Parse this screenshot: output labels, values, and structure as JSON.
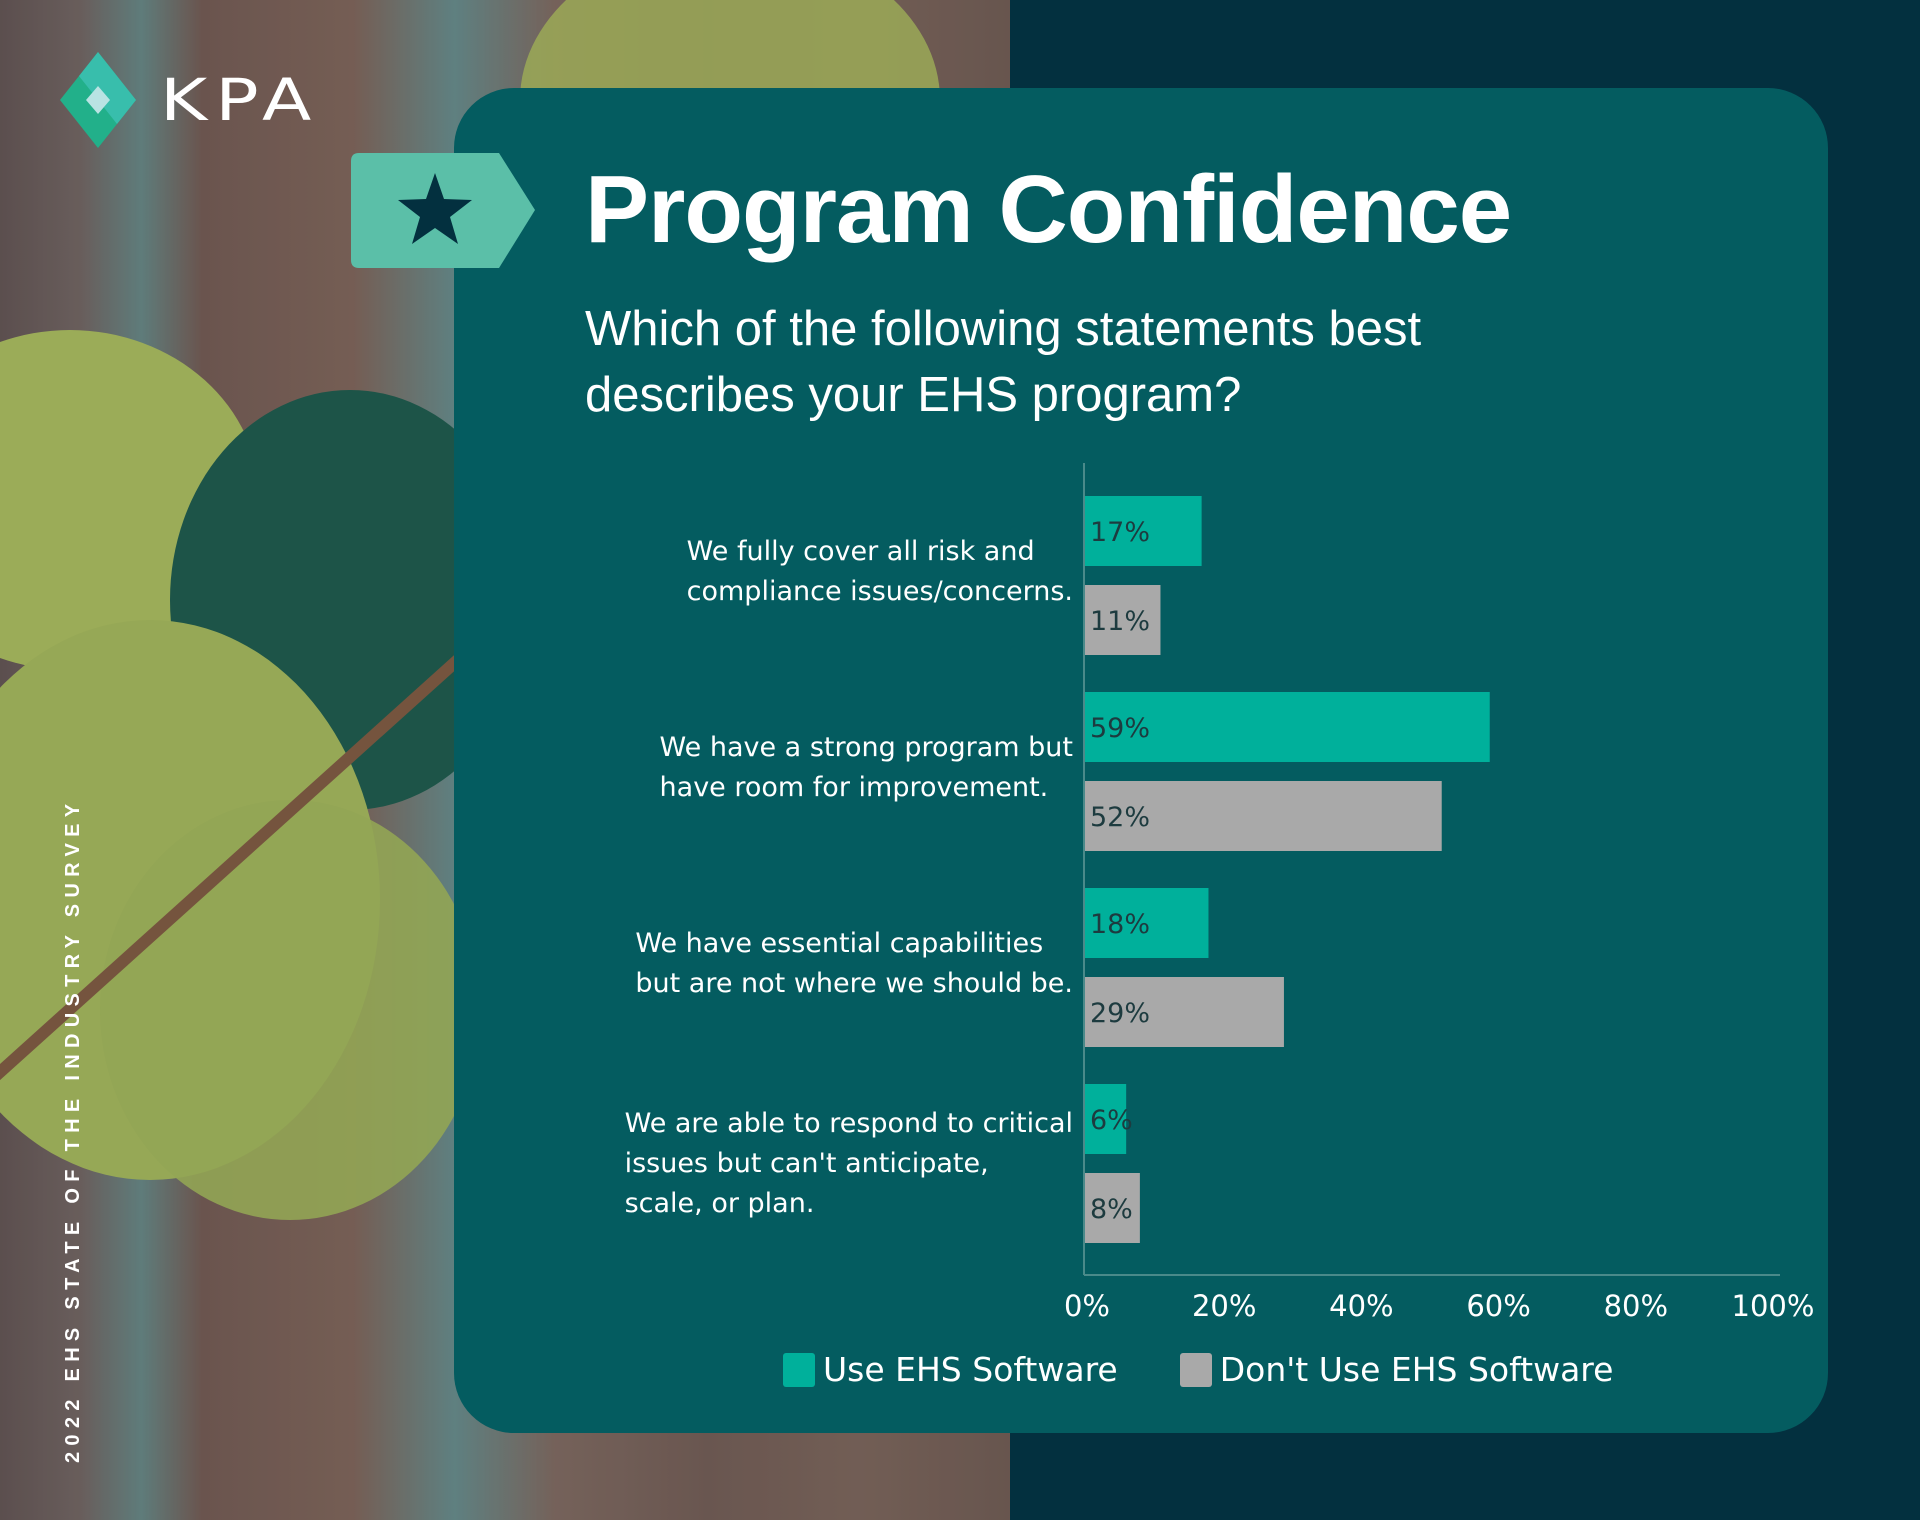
{
  "brand": {
    "logo_text": "KPA"
  },
  "side_caption": "2022 EHS STATE OF THE INDUSTRY SURVEY",
  "header": {
    "title": "Program Confidence",
    "subtitle": "Which of the following statements best describes your EHS program?"
  },
  "colors": {
    "use": "#00b09b",
    "dont_use": "#a9a9a9",
    "card": "#045c60",
    "tag": "#5bbfa8",
    "background": "#03303f"
  },
  "chart_data": {
    "type": "bar",
    "orientation": "horizontal",
    "categories": [
      "We fully cover all risk and compliance issues/concerns.",
      "We have a strong program but have room for improvement.",
      "We have essential capabilities but are not where we should be.",
      "We are able to respond to critical issues but can't anticipate, scale, or plan."
    ],
    "category_lines": [
      [
        "We fully cover all risk and",
        "compliance issues/concerns."
      ],
      [
        "We have a strong program but",
        "have room for improvement."
      ],
      [
        "We have essential capabilities",
        "but are not where we should be."
      ],
      [
        "We are able to respond to critical",
        "issues but can't anticipate,",
        "scale, or plan."
      ]
    ],
    "series": [
      {
        "name": "Use EHS Software",
        "values": [
          17,
          59,
          18,
          6
        ],
        "labels": [
          "17%",
          "59%",
          "18%",
          "6%"
        ]
      },
      {
        "name": "Don't Use EHS Software",
        "values": [
          11,
          52,
          29,
          8
        ],
        "labels": [
          "11%",
          "52%",
          "29%",
          "8%"
        ]
      }
    ],
    "xlim": [
      0,
      100
    ],
    "x_ticks": [
      "0%",
      "20%",
      "40%",
      "60%",
      "80%",
      "100%"
    ],
    "legend": "bottom",
    "grid": false
  }
}
